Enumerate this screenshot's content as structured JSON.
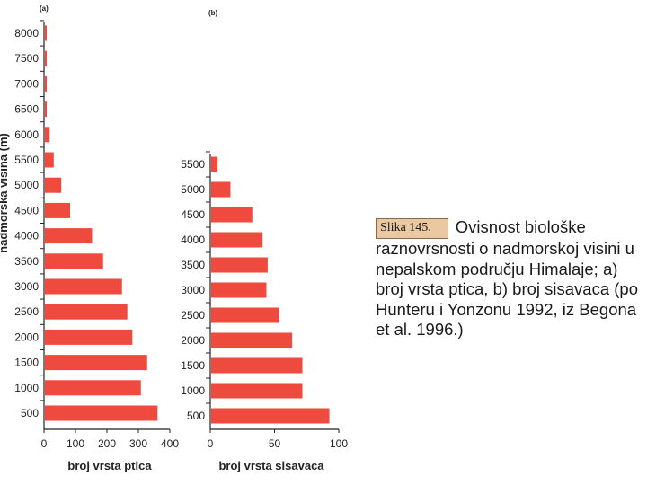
{
  "bar_color": "#ee4a3e",
  "caption": {
    "label": "Slika 145.",
    "text": "Ovisnost biološke raznovrsnosti o nadmorskoj visini u nepalskom području Himalaje; a) broj vrsta ptica, b) broj sisavaca (po Hunteru i Yonzonu 1992, iz Begona et al. 1996.)"
  },
  "chart_data": [
    {
      "type": "bar",
      "orientation": "horizontal",
      "panel_label": "(a)",
      "ylabel": "nadmorska visina (m)",
      "xlabel": "broj vrsta ptica",
      "categories": [
        "8000",
        "7500",
        "7000",
        "6500",
        "6000",
        "5500",
        "5000",
        "4500",
        "4000",
        "3500",
        "3000",
        "2500",
        "2000",
        "1500",
        "1000",
        "500"
      ],
      "values": [
        3,
        3,
        3,
        3,
        15,
        28,
        52,
        80,
        150,
        185,
        245,
        262,
        278,
        325,
        305,
        358
      ],
      "xlim": [
        0,
        400
      ],
      "xticks": [
        "0",
        "100",
        "200",
        "300",
        "400"
      ]
    },
    {
      "type": "bar",
      "orientation": "horizontal",
      "panel_label": "(b)",
      "xlabel": "broj vrsta sisavaca",
      "categories": [
        "5500",
        "5000",
        "4500",
        "4000",
        "3500",
        "3000",
        "2500",
        "2000",
        "1500",
        "1000",
        "500"
      ],
      "values": [
        5,
        15,
        32,
        40,
        44,
        43,
        53,
        63,
        71,
        71,
        92
      ],
      "xlim": [
        0,
        100
      ],
      "xticks": [
        "0",
        "50",
        "100"
      ]
    }
  ]
}
